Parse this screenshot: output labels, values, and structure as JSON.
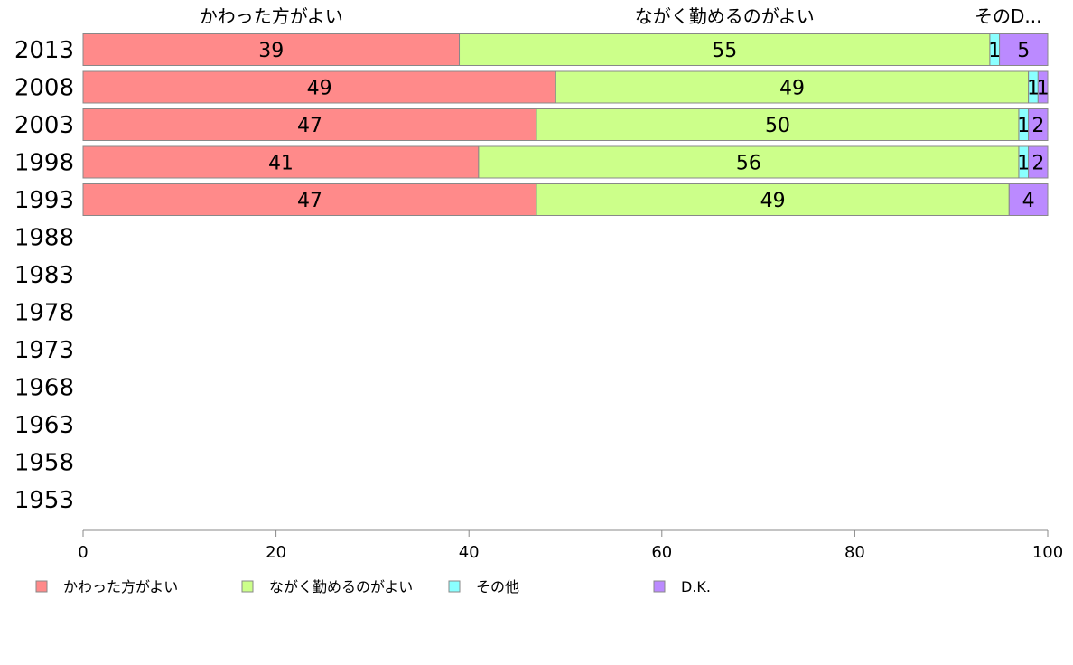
{
  "chart_data": {
    "type": "bar",
    "orientation": "horizontal",
    "stacked": true,
    "categories": [
      "2013",
      "2008",
      "2003",
      "1998",
      "1993",
      "1988",
      "1983",
      "1978",
      "1973",
      "1968",
      "1963",
      "1958",
      "1953"
    ],
    "series": [
      {
        "name": "かわった方がよい",
        "color": "#ff8a8a",
        "values": [
          39,
          49,
          47,
          41,
          47,
          null,
          null,
          null,
          null,
          null,
          null,
          null,
          null
        ]
      },
      {
        "name": "ながく勤めるのがよい",
        "color": "#ccff8a",
        "values": [
          55,
          49,
          50,
          56,
          49,
          null,
          null,
          null,
          null,
          null,
          null,
          null,
          null
        ]
      },
      {
        "name": "その他",
        "color": "#8affff",
        "values": [
          1,
          1,
          1,
          1,
          0,
          null,
          null,
          null,
          null,
          null,
          null,
          null,
          null
        ]
      },
      {
        "name": "D.K.",
        "color": "#bb8aff",
        "values": [
          5,
          1,
          2,
          2,
          4,
          null,
          null,
          null,
          null,
          null,
          null,
          null,
          null
        ]
      }
    ],
    "top_labels": [
      "かわった方がよい",
      "ながく勤めるのがよい",
      "そのD..."
    ],
    "xlim": [
      0,
      100
    ],
    "xticks": [
      0,
      20,
      40,
      60,
      80,
      100
    ],
    "legend_position": "bottom",
    "grid": false
  }
}
